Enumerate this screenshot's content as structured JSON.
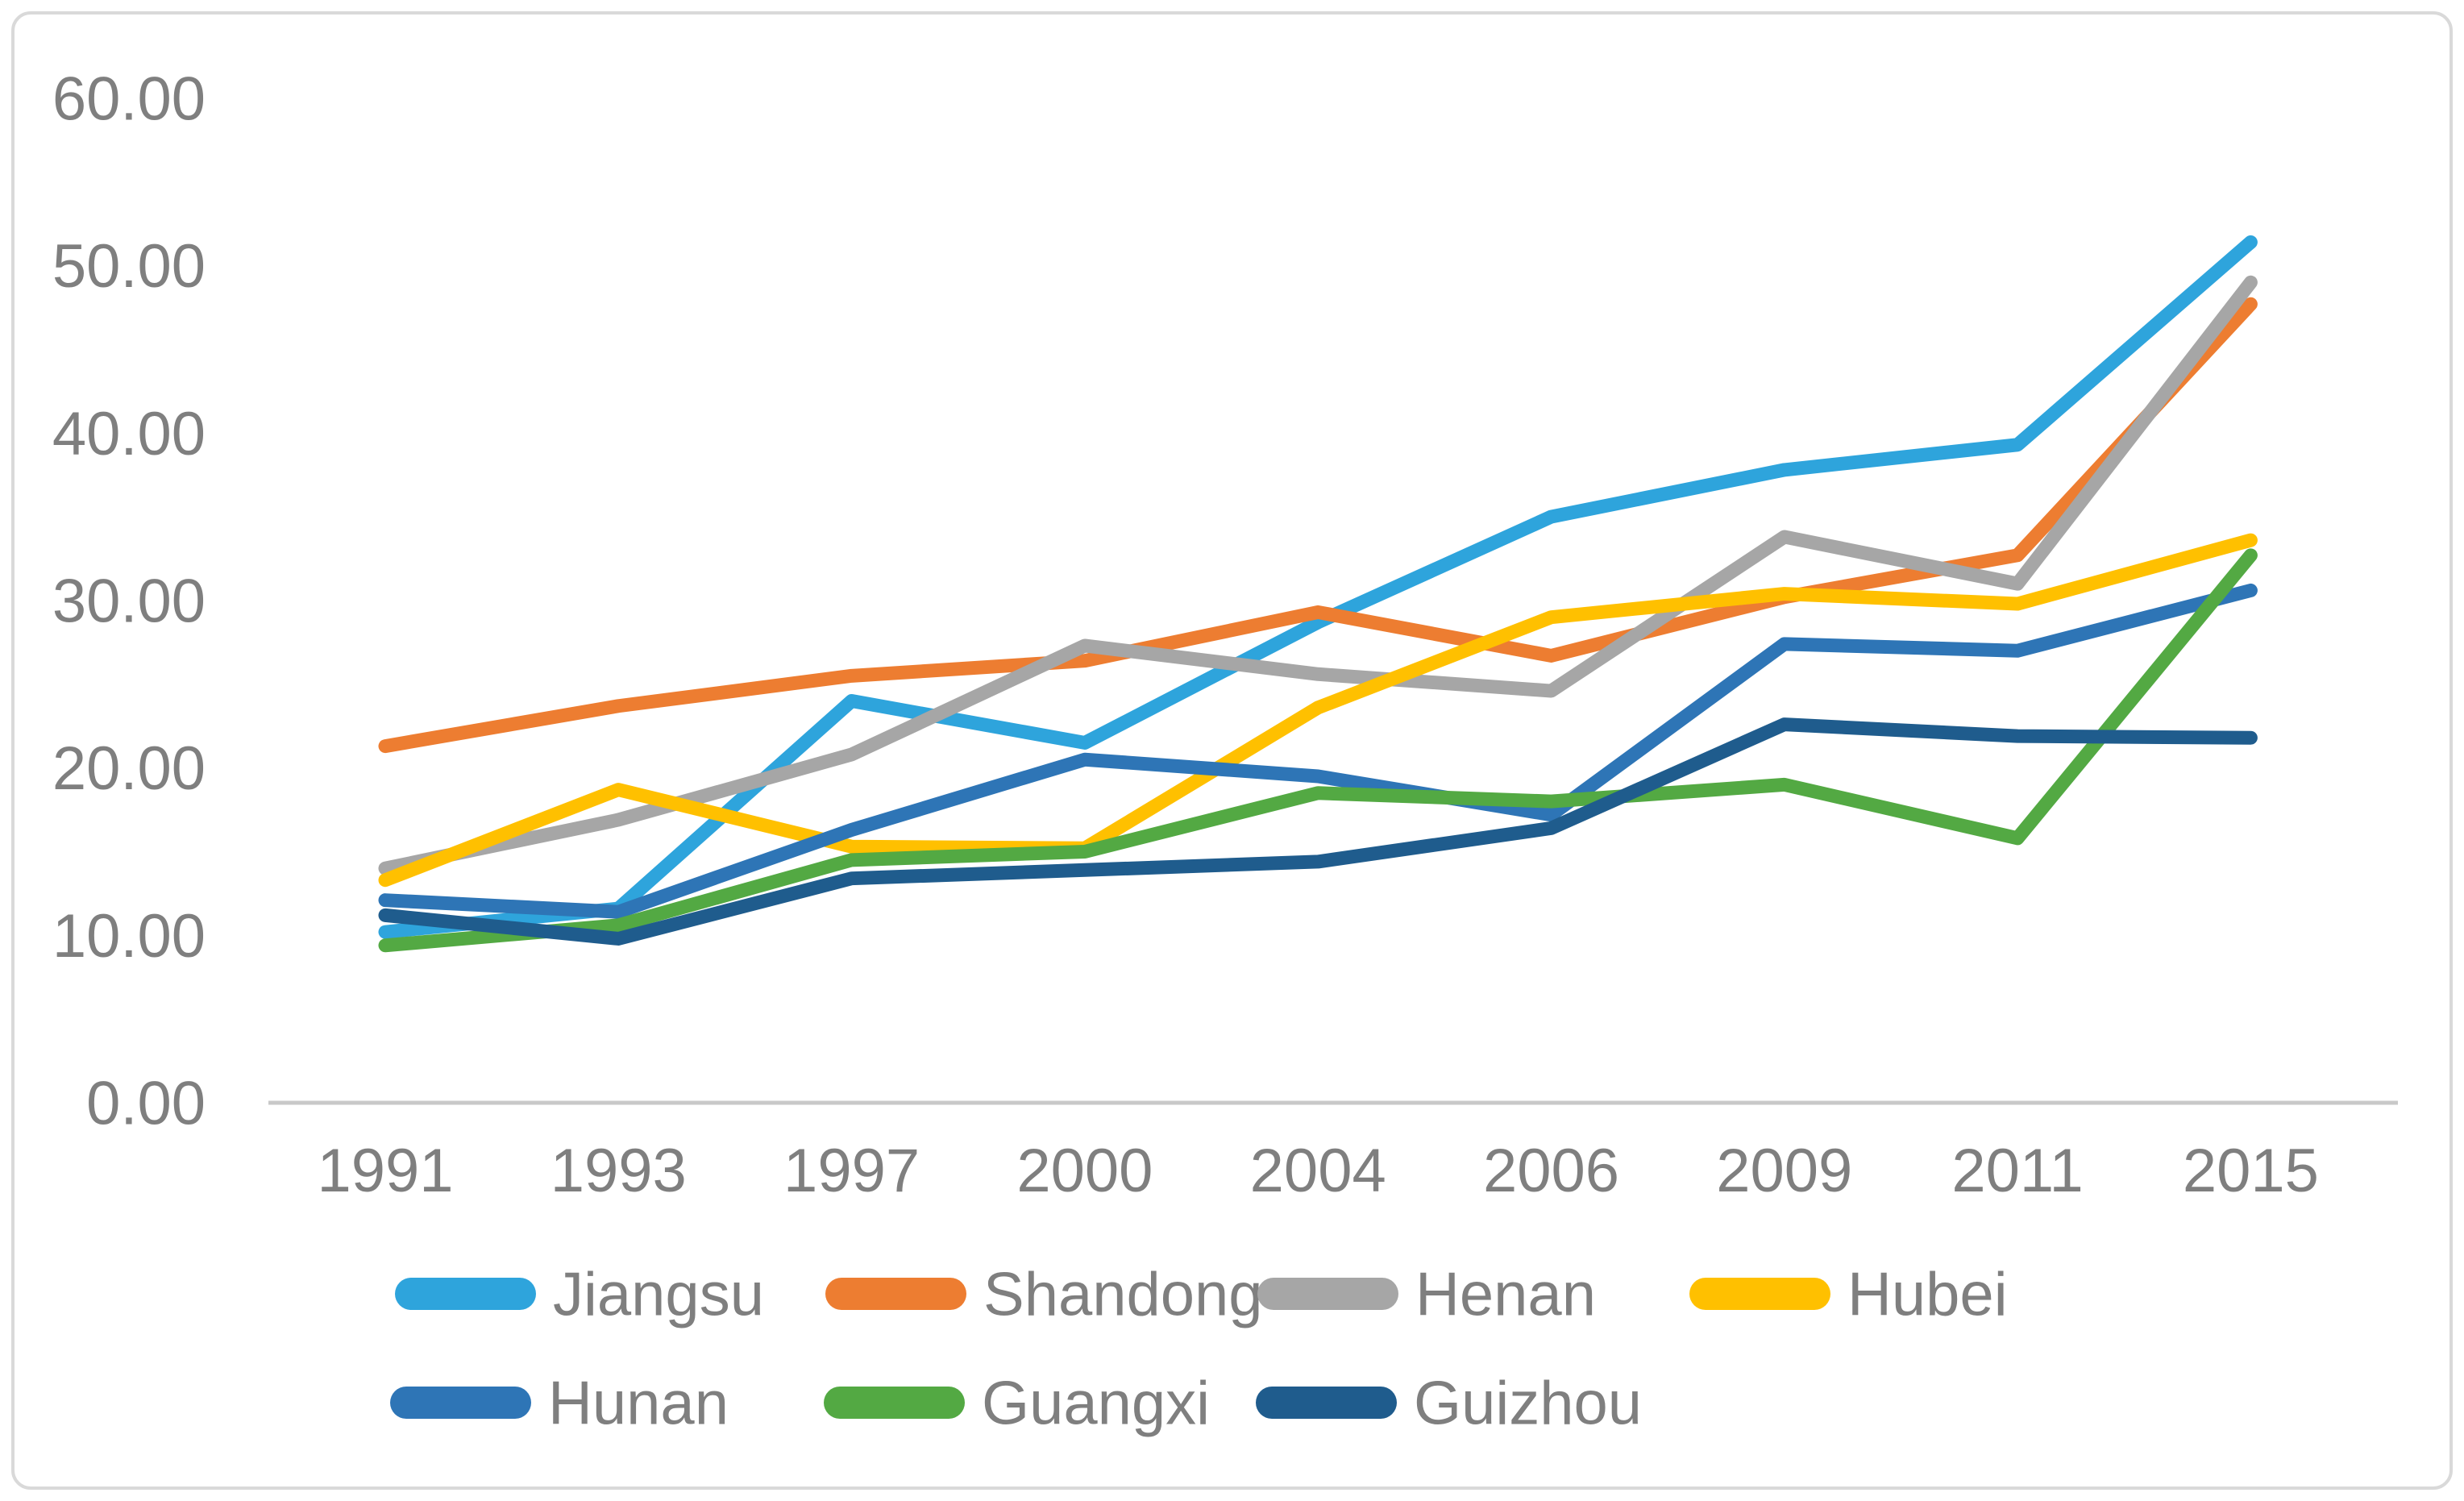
{
  "chart_data": {
    "type": "line",
    "title": "",
    "xlabel": "",
    "ylabel": "",
    "x": [
      "1991",
      "1993",
      "1997",
      "2000",
      "2004",
      "2006",
      "2009",
      "2011",
      "2015"
    ],
    "series": [
      {
        "name": "Jiangsu",
        "color": "#2EA4DC",
        "values": [
          10.2,
          11.6,
          24.0,
          21.5,
          28.7,
          35.0,
          37.8,
          39.3,
          51.4
        ]
      },
      {
        "name": "Shandong",
        "color": "#ED7D31",
        "values": [
          21.3,
          23.7,
          25.5,
          26.4,
          29.3,
          26.7,
          30.2,
          32.7,
          47.7
        ]
      },
      {
        "name": "Henan",
        "color": "#A6A6A6",
        "values": [
          14.0,
          16.9,
          20.8,
          27.3,
          25.6,
          24.6,
          33.8,
          31.0,
          49.0
        ]
      },
      {
        "name": "Hubei",
        "color": "#FFC000",
        "values": [
          13.3,
          18.7,
          15.3,
          15.2,
          23.6,
          29.0,
          30.4,
          29.8,
          33.6
        ]
      },
      {
        "name": "Hunan",
        "color": "#2E75B6",
        "values": [
          12.1,
          11.4,
          16.3,
          20.5,
          19.5,
          17.2,
          27.4,
          27.0,
          30.6
        ]
      },
      {
        "name": "Guangxi",
        "color": "#53A943",
        "values": [
          9.4,
          10.6,
          14.5,
          15.0,
          18.5,
          18.0,
          19.0,
          15.8,
          32.7
        ]
      },
      {
        "name": "Guizhou",
        "color": "#1F5C8D",
        "values": [
          11.2,
          9.8,
          13.4,
          13.9,
          14.4,
          16.4,
          22.6,
          21.9,
          21.8
        ]
      }
    ],
    "y_ticks": [
      {
        "value": 60,
        "label": "60.00"
      },
      {
        "value": 50,
        "label": "50.00"
      },
      {
        "value": 40,
        "label": "40.00"
      },
      {
        "value": 30,
        "label": "30.00"
      },
      {
        "value": 20,
        "label": "20.00"
      },
      {
        "value": 10,
        "label": "10.00"
      },
      {
        "value": 0,
        "label": "0.00"
      }
    ],
    "ylim": [
      0,
      60
    ],
    "grid": false,
    "legend_position": "bottom",
    "legend_rows": [
      [
        "Jiangsu",
        "Shandong",
        "Henan",
        "Hubei"
      ],
      [
        "Hunan",
        "Guangxi",
        "Guizhou"
      ]
    ],
    "style": {
      "axis_text_color": "#7F7F7F",
      "axis_line_color": "#C9C9C9",
      "border_color": "#D9D9D9",
      "background": "#FFFFFF"
    }
  }
}
